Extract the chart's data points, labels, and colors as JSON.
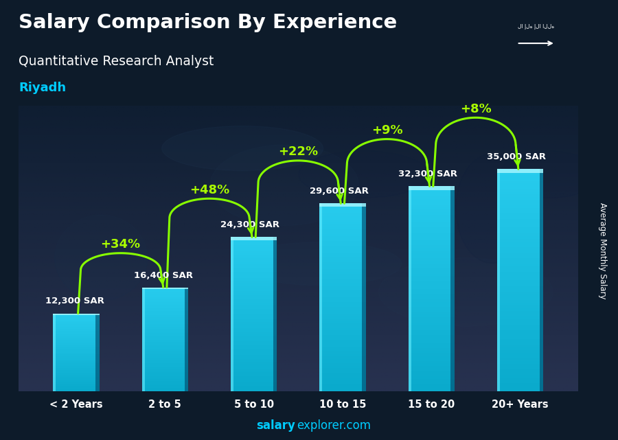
{
  "title": "Salary Comparison By Experience",
  "subtitle": "Quantitative Research Analyst",
  "city": "Riyadh",
  "categories": [
    "< 2 Years",
    "2 to 5",
    "5 to 10",
    "10 to 15",
    "15 to 20",
    "20+ Years"
  ],
  "values": [
    12300,
    16400,
    24300,
    29600,
    32300,
    35000
  ],
  "salary_labels": [
    "12,300 SAR",
    "16,400 SAR",
    "24,300 SAR",
    "29,600 SAR",
    "32,300 SAR",
    "35,000 SAR"
  ],
  "pct_labels": [
    "+34%",
    "+48%",
    "+22%",
    "+9%",
    "+8%"
  ],
  "bar_color_face": "#1ab8d8",
  "bar_color_left": "#22ccee",
  "bar_color_right": "#0e8aaa",
  "bar_color_top": "#55ddff",
  "bg_top": "#0d1b2e",
  "bg_bottom": "#1a2f45",
  "title_color": "#ffffff",
  "subtitle_color": "#ffffff",
  "city_color": "#00ccff",
  "salary_label_color": "#ffffff",
  "pct_color": "#aaff00",
  "arrow_color": "#88ff00",
  "xlabel_color": "#00ccff",
  "watermark_bold": "salary",
  "watermark_normal": "explorer.com",
  "ylabel": "Average Monthly Salary",
  "ylim": [
    0,
    45000
  ],
  "bar_width": 0.52,
  "figsize": [
    9.0,
    6.41
  ]
}
